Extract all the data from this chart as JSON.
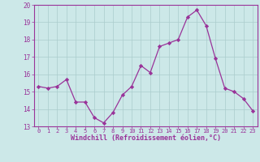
{
  "x": [
    0,
    1,
    2,
    3,
    4,
    5,
    6,
    7,
    8,
    9,
    10,
    11,
    12,
    13,
    14,
    15,
    16,
    17,
    18,
    19,
    20,
    21,
    22,
    23
  ],
  "y": [
    15.3,
    15.2,
    15.3,
    15.7,
    14.4,
    14.4,
    13.5,
    13.2,
    13.8,
    14.8,
    15.3,
    16.5,
    16.1,
    17.6,
    17.8,
    18.0,
    19.3,
    19.7,
    18.8,
    16.9,
    15.2,
    15.0,
    14.6,
    13.9
  ],
  "line_color": "#993399",
  "marker": "D",
  "marker_size": 2.2,
  "bg_color": "#cce8e8",
  "grid_color": "#aacccc",
  "xlabel": "Windchill (Refroidissement éolien,°C)",
  "xlabel_color": "#993399",
  "tick_color": "#993399",
  "spine_color": "#993399",
  "ylim": [
    13,
    20
  ],
  "xlim": [
    -0.5,
    23.5
  ],
  "yticks": [
    13,
    14,
    15,
    16,
    17,
    18,
    19,
    20
  ],
  "xticks": [
    0,
    1,
    2,
    3,
    4,
    5,
    6,
    7,
    8,
    9,
    10,
    11,
    12,
    13,
    14,
    15,
    16,
    17,
    18,
    19,
    20,
    21,
    22,
    23
  ]
}
